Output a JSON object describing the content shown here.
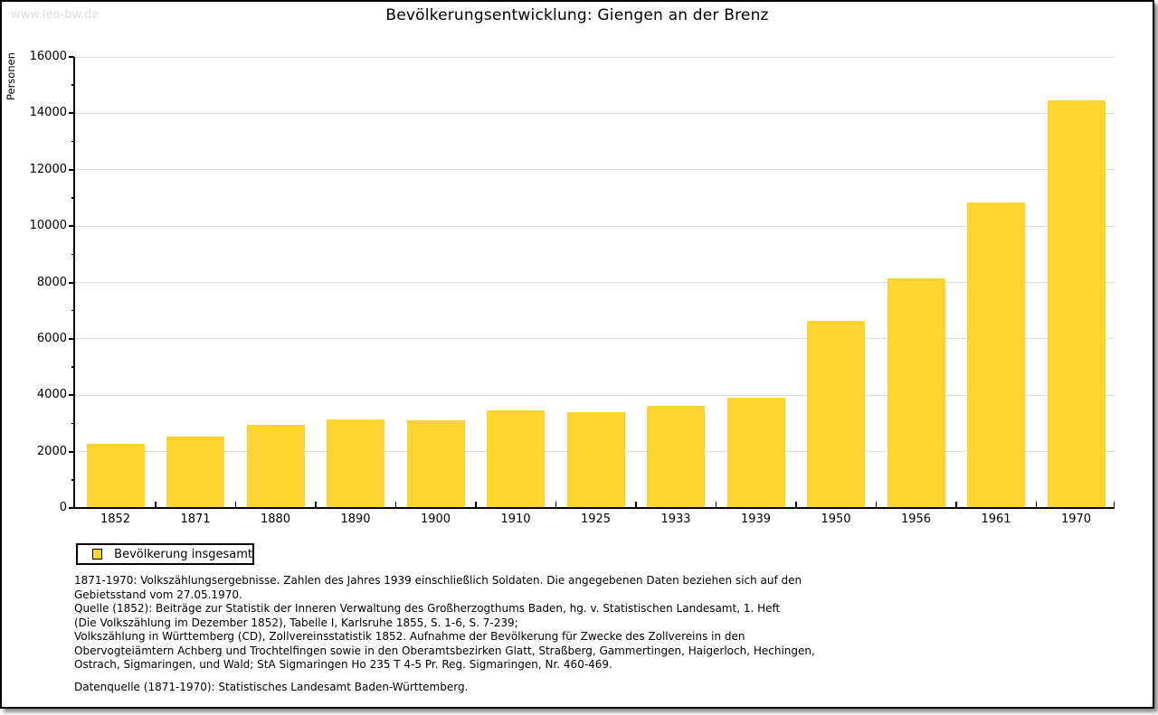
{
  "page": {
    "watermark": "www.leo-bw.de",
    "title": "Bevölkerungsentwicklung: Giengen an der Brenz"
  },
  "chart_data": {
    "type": "bar",
    "title": "Bevölkerungsentwicklung: Giengen an der Brenz",
    "xlabel": "",
    "ylabel": "Personen",
    "categories": [
      "1852",
      "1871",
      "1880",
      "1890",
      "1900",
      "1910",
      "1925",
      "1933",
      "1939",
      "1950",
      "1956",
      "1961",
      "1970"
    ],
    "series": [
      {
        "name": "Bevölkerung insgesamt",
        "values": [
          2274,
          2547,
          2935,
          3158,
          3116,
          3461,
          3413,
          3620,
          3909,
          6629,
          8143,
          10845,
          14454
        ]
      }
    ],
    "ylim": [
      0,
      16000
    ],
    "y_tick_step": 2000,
    "y_minor_tick_step": 1000,
    "grid": true,
    "legend_position": "bottom-left",
    "bar_color": "#FCD42F",
    "gridline_color": "#DDDDDD",
    "axis_color": "#000000"
  },
  "legend": {
    "label": "Bevölkerung insgesamt"
  },
  "footnotes": {
    "lines": [
      "1871-1970: Volkszählungsergebnisse. Zahlen des Jahres 1939 einschließlich Soldaten. Die angegebenen Daten beziehen sich auf den",
      "Gebietsstand vom 27.05.1970.",
      "Quelle (1852): Beiträge zur Statistik der Inneren Verwaltung des Großherzogthums Baden, hg. v. Statistischen Landesamt, 1. Heft",
      "(Die Volkszählung im Dezember 1852), Tabelle I, Karlsruhe 1855, S. 1-6, S. 7-239;",
      "Volkszählung in Württemberg (CD), Zollvereinsstatistik 1852. Aufnahme der Bevölkerung für Zwecke des Zollvereins in den",
      "Obervogteiämtern Achberg und Trochtelfingen sowie in den Oberamtsbezirken Glatt, Straßberg, Gammertingen, Haigerloch, Hechingen,",
      "Ostrach, Sigmaringen, und Wald; StA Sigmaringen Ho 235 T 4-5 Pr. Reg. Sigmaringen, Nr. 460-469."
    ],
    "datasource": "Datenquelle (1871-1970): Statistisches Landesamt Baden-Württemberg."
  }
}
